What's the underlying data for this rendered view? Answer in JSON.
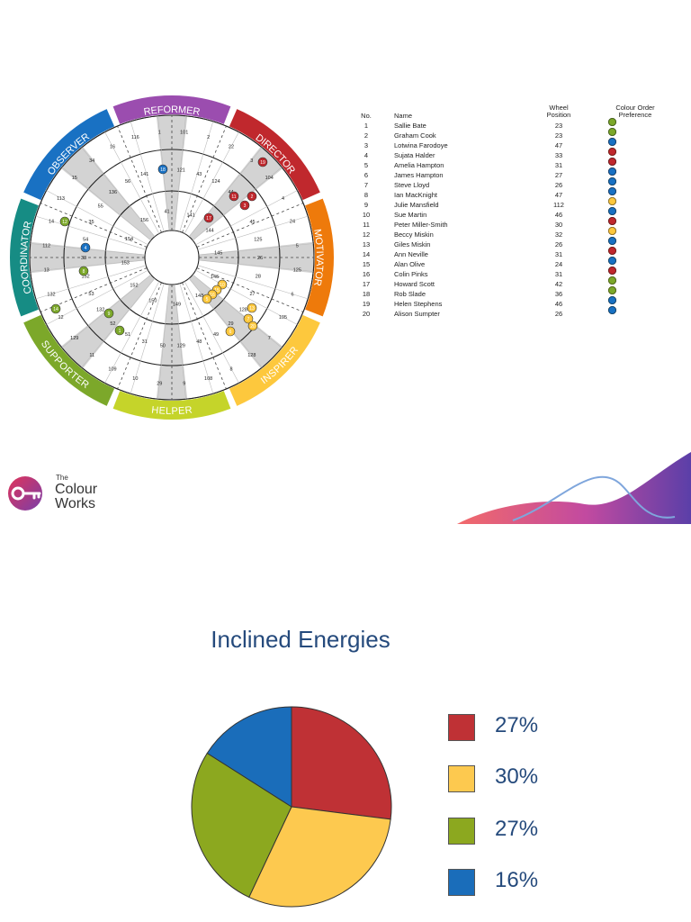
{
  "wheel": {
    "segments": [
      {
        "name": "REFORMER",
        "color": "#9B4DAF"
      },
      {
        "name": "DIRECTOR",
        "color": "#C0282D"
      },
      {
        "name": "MOTIVATOR",
        "color": "#EE7A0B"
      },
      {
        "name": "INSPIRER",
        "color": "#FDC83D"
      },
      {
        "name": "HELPER",
        "color": "#C5D42A"
      },
      {
        "name": "SUPPORTER",
        "color": "#7CA82A"
      },
      {
        "name": "COORDINATOR",
        "color": "#168C84"
      },
      {
        "name": "OBSERVER",
        "color": "#1971C3"
      }
    ],
    "outer_numbers": [
      "1",
      "101",
      "2",
      "22",
      "3",
      "104",
      "4",
      "24",
      "5",
      "125",
      "6",
      "105",
      "7",
      "128",
      "8",
      "108",
      "9",
      "29",
      "10",
      "109",
      "11",
      "129",
      "12",
      "132",
      "13",
      "112",
      "14",
      "113",
      "15",
      "34",
      "16",
      "116"
    ],
    "mid_numbers": [
      "21",
      "121",
      "43",
      "124",
      "44",
      "25",
      "45",
      "125",
      "26",
      "28",
      "27",
      "128",
      "29",
      "49",
      "48",
      "129",
      "50",
      "31",
      "51",
      "52",
      "132",
      "53",
      "152",
      "33",
      "54",
      "35",
      "55",
      "136",
      "56",
      "141"
    ],
    "inner_numbers": [
      "41",
      "141",
      "144",
      "145",
      "146",
      "148",
      "149",
      "150",
      "152",
      "153",
      "154",
      "156"
    ],
    "markers": [
      {
        "num": "19",
        "color": "#C0282D"
      },
      {
        "num": "2",
        "color": "#C0282D"
      },
      {
        "num": "3",
        "color": "#C0282D"
      },
      {
        "num": "17",
        "color": "#C0282D"
      },
      {
        "num": "11",
        "color": "#C0282D"
      },
      {
        "num": "18",
        "color": "#1971C3"
      },
      {
        "num": "4",
        "color": "#1971C3"
      },
      {
        "num": "10",
        "color": "#FDC83D"
      },
      {
        "num": "15",
        "color": "#FDC83D"
      },
      {
        "num": "16",
        "color": "#FDC83D"
      },
      {
        "num": "5",
        "color": "#FDC83D"
      },
      {
        "num": "13",
        "color": "#FDC83D"
      },
      {
        "num": "7",
        "color": "#FDC83D"
      },
      {
        "num": "20",
        "color": "#FDC83D"
      },
      {
        "num": "6",
        "color": "#FDC83D"
      },
      {
        "num": "12",
        "color": "#7CA82A"
      },
      {
        "num": "8",
        "color": "#7CA82A"
      },
      {
        "num": "14",
        "color": "#7CA82A"
      },
      {
        "num": "9",
        "color": "#7CA82A"
      },
      {
        "num": "1",
        "color": "#7CA82A"
      }
    ]
  },
  "table": {
    "headers": {
      "no": "No.",
      "name": "Name",
      "wheel_line1": "Wheel",
      "wheel_line2": "Position",
      "order_line1": "Colour Order",
      "order_line2": "Preference"
    },
    "rows": [
      {
        "no": "1",
        "name": "Sallie Bate",
        "pos": "23",
        "order": [
          "r",
          "y",
          "/",
          "b",
          "g"
        ]
      },
      {
        "no": "2",
        "name": "Graham Cook",
        "pos": "23",
        "order": [
          "r",
          "y",
          "/",
          "b",
          "g"
        ]
      },
      {
        "no": "3",
        "name": "Lotwina Farodoye",
        "pos": "47",
        "order": [
          "y",
          "g",
          "r",
          "/",
          "b"
        ]
      },
      {
        "no": "4",
        "name": "Sujata Halder",
        "pos": "33",
        "order": [
          "b",
          "g",
          "/",
          "y",
          "r"
        ]
      },
      {
        "no": "5",
        "name": "Amelia Hampton",
        "pos": "31",
        "order": [
          "g",
          "y",
          "/",
          "b",
          "r"
        ]
      },
      {
        "no": "6",
        "name": "James Hampton",
        "pos": "27",
        "order": [
          "y",
          "g",
          "/",
          "r",
          "b"
        ]
      },
      {
        "no": "7",
        "name": "Steve Lloyd",
        "pos": "26",
        "order": [
          "y",
          "r",
          "/",
          "g",
          "b"
        ]
      },
      {
        "no": "8",
        "name": "Ian MacKnight",
        "pos": "47",
        "order": [
          "y",
          "g",
          "r",
          "/",
          "b"
        ]
      },
      {
        "no": "9",
        "name": "Julie Mansfield",
        "pos": "112",
        "order": [
          "g",
          "/",
          "r",
          "b",
          "y"
        ]
      },
      {
        "no": "10",
        "name": "Sue Martin",
        "pos": "46",
        "order": [
          "y",
          "r",
          "g",
          "/",
          "b"
        ]
      },
      {
        "no": "11",
        "name": "Peter Miller-Smith",
        "pos": "30",
        "order": [
          "g",
          "y",
          "/",
          "b",
          "r"
        ]
      },
      {
        "no": "12",
        "name": "Beccy Miskin",
        "pos": "32",
        "order": [
          "g",
          "b",
          "/",
          "r",
          "y"
        ]
      },
      {
        "no": "13",
        "name": "Giles Miskin",
        "pos": "26",
        "order": [
          "y",
          "r",
          "/",
          "g",
          "b"
        ]
      },
      {
        "no": "14",
        "name": "Ann Neville",
        "pos": "31",
        "order": [
          "g",
          "b",
          "/",
          "y",
          "r"
        ]
      },
      {
        "no": "15",
        "name": "Alan Olive",
        "pos": "24",
        "order": [
          "r",
          "y",
          "/",
          "g",
          "b"
        ]
      },
      {
        "no": "16",
        "name": "Colin Pinks",
        "pos": "31",
        "order": [
          "g",
          "y",
          "/",
          "b",
          "r"
        ]
      },
      {
        "no": "17",
        "name": "Howard Scott",
        "pos": "42",
        "order": [
          "r",
          "b",
          "y",
          "/",
          "g"
        ]
      },
      {
        "no": "18",
        "name": "Rob Slade",
        "pos": "36",
        "order": [
          "b",
          "r",
          "/",
          "y",
          "g"
        ]
      },
      {
        "no": "19",
        "name": "Helen Stephens",
        "pos": "46",
        "order": [
          "y",
          "r",
          "g",
          "/",
          "b"
        ]
      },
      {
        "no": "20",
        "name": "Alison Sumpter",
        "pos": "26",
        "order": [
          "y",
          "r",
          "/",
          "g",
          "b"
        ]
      }
    ],
    "colors": {
      "r": "#C0282D",
      "y": "#FDC83D",
      "g": "#7CA82A",
      "b": "#1971C3"
    }
  },
  "logo": {
    "the": "The",
    "word1": "Colour",
    "word2": "Works"
  },
  "inclined": {
    "title": "Inclined Energies",
    "chart_data": {
      "type": "pie",
      "slices": [
        {
          "label": "27%",
          "value": 27,
          "color": "#BF3135"
        },
        {
          "label": "30%",
          "value": 30,
          "color": "#FDC94F"
        },
        {
          "label": "27%",
          "value": 27,
          "color": "#8CA81F"
        },
        {
          "label": "16%",
          "value": 16,
          "color": "#1A6DBA"
        }
      ]
    }
  }
}
